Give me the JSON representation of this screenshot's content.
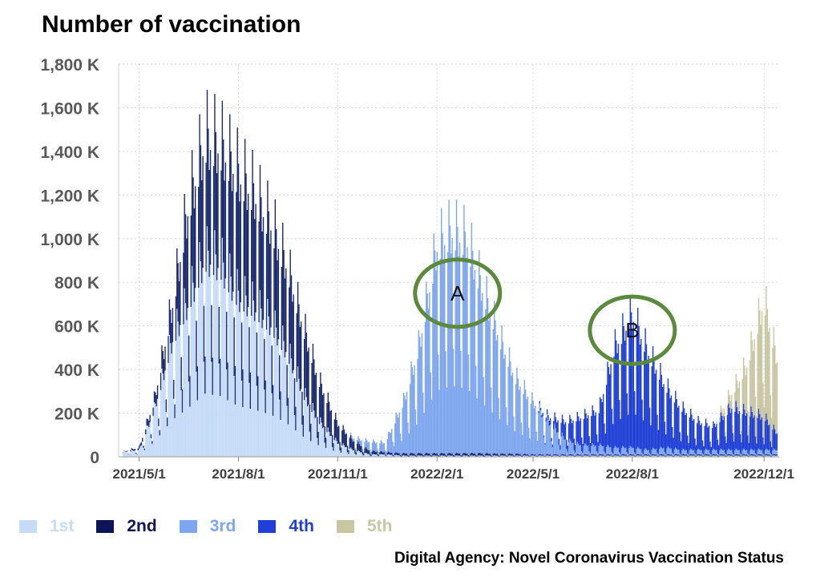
{
  "title": "Number of vaccination",
  "source": "Digital Agency: Novel Coronavirus Vaccination Status",
  "colors": {
    "1st": "#c6dbf7",
    "2nd": "#1a2a70",
    "3rd": "#7ea6ee",
    "4th": "#1f3fd6",
    "5th": "#c9c6a4",
    "annotation_ellipse": "#5b8a3c"
  },
  "legend": [
    {
      "name": "1st",
      "color": "#c6dbf7",
      "text_color": "#c6dbf7"
    },
    {
      "name": "2nd",
      "color": "#0d1457",
      "text_color": "#0d1457"
    },
    {
      "name": "3rd",
      "color": "#7ea6ee",
      "text_color": "#7ea6ee"
    },
    {
      "name": "4th",
      "color": "#1f3fd6",
      "text_color": "#1f3fd6"
    },
    {
      "name": "5th",
      "color": "#c9c6a4",
      "text_color": "#c9c6a4"
    }
  ],
  "annotations": [
    {
      "label": "A",
      "date": "2022-02-20",
      "value_k": 750
    },
    {
      "label": "B",
      "date": "2022-08-01",
      "value_k": 580
    }
  ],
  "chart_data": {
    "type": "area",
    "title": "Number of vaccination",
    "xlabel": "",
    "ylabel": "",
    "x_tick_labels": [
      "2021/5/1",
      "2021/8/1",
      "2021/11/1",
      "2022/2/1",
      "2022/5/1",
      "2022/8/1",
      "2022/12/1"
    ],
    "x_range": [
      "2021-04-12",
      "2022-12-15"
    ],
    "y_tick_labels": [
      "0",
      "200 K",
      "400 K",
      "600 K",
      "800 K",
      "1,000 K",
      "1,200 K",
      "1,400 K",
      "1,600 K",
      "1,800 K"
    ],
    "ylim": [
      0,
      1800
    ],
    "y_unit": "thousand vaccinations per day",
    "grid": true,
    "legend_position": "bottom-left",
    "stacked": true,
    "x": [
      "2021-04-15",
      "2021-05-01",
      "2021-05-15",
      "2021-06-01",
      "2021-06-15",
      "2021-07-01",
      "2021-07-15",
      "2021-08-01",
      "2021-08-15",
      "2021-09-01",
      "2021-09-15",
      "2021-10-01",
      "2021-10-15",
      "2021-11-01",
      "2021-11-15",
      "2021-12-01",
      "2021-12-15",
      "2022-01-01",
      "2022-01-15",
      "2022-02-01",
      "2022-02-15",
      "2022-03-01",
      "2022-03-15",
      "2022-04-01",
      "2022-04-15",
      "2022-05-01",
      "2022-05-15",
      "2022-06-01",
      "2022-06-15",
      "2022-07-01",
      "2022-07-15",
      "2022-08-01",
      "2022-08-15",
      "2022-09-01",
      "2022-09-15",
      "2022-10-01",
      "2022-10-15",
      "2022-11-01",
      "2022-11-15",
      "2022-12-01",
      "2022-12-15"
    ],
    "series": [
      {
        "name": "1st",
        "values": [
          20,
          30,
          200,
          500,
          650,
          850,
          820,
          680,
          640,
          560,
          450,
          260,
          150,
          60,
          30,
          10,
          10,
          5,
          5,
          5,
          5,
          5,
          5,
          5,
          5,
          5,
          5,
          5,
          5,
          5,
          5,
          5,
          5,
          5,
          5,
          5,
          5,
          5,
          5,
          5,
          5
        ]
      },
      {
        "name": "2nd",
        "values": [
          0,
          10,
          40,
          150,
          400,
          500,
          500,
          520,
          480,
          420,
          360,
          280,
          170,
          80,
          40,
          15,
          10,
          10,
          10,
          10,
          10,
          10,
          10,
          8,
          8,
          5,
          5,
          5,
          5,
          5,
          5,
          5,
          5,
          5,
          5,
          5,
          5,
          5,
          5,
          5,
          5
        ]
      },
      {
        "name": "3rd",
        "values": [
          0,
          0,
          0,
          0,
          0,
          0,
          0,
          0,
          0,
          0,
          0,
          0,
          0,
          0,
          10,
          40,
          40,
          220,
          450,
          880,
          940,
          900,
          700,
          480,
          320,
          220,
          140,
          60,
          40,
          40,
          30,
          30,
          20,
          30,
          20,
          20,
          20,
          20,
          20,
          20,
          20
        ]
      },
      {
        "name": "4th",
        "values": [
          0,
          0,
          0,
          0,
          0,
          0,
          0,
          0,
          0,
          0,
          0,
          0,
          0,
          0,
          0,
          0,
          0,
          0,
          0,
          0,
          0,
          0,
          0,
          0,
          0,
          0,
          20,
          80,
          120,
          150,
          420,
          560,
          420,
          260,
          180,
          120,
          100,
          180,
          160,
          140,
          60
        ]
      },
      {
        "name": "5th",
        "values": [
          0,
          0,
          0,
          0,
          0,
          0,
          0,
          0,
          0,
          0,
          0,
          0,
          0,
          0,
          0,
          0,
          0,
          0,
          0,
          0,
          0,
          0,
          0,
          0,
          0,
          0,
          0,
          0,
          0,
          0,
          0,
          0,
          0,
          0,
          0,
          0,
          0,
          60,
          200,
          500,
          280
        ]
      }
    ]
  }
}
